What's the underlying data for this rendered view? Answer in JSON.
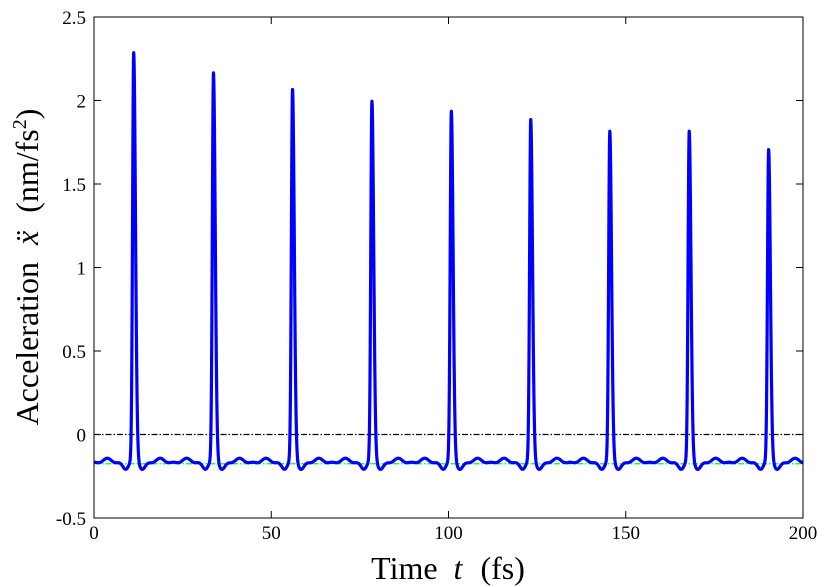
{
  "chart_data": {
    "type": "line",
    "title": "",
    "xlabel": {
      "main": "Time",
      "var": "t",
      "unit": "(fs)"
    },
    "ylabel": {
      "main": "Acceleration",
      "var": "ẍ",
      "unit_open": "(nm/fs",
      "unit_sup": "2",
      "unit_close": ")"
    },
    "xlim": [
      0,
      200
    ],
    "ylim": [
      -0.5,
      2.5
    ],
    "xticks": [
      0,
      50,
      100,
      150,
      200
    ],
    "xtick_labels": [
      "0",
      "50",
      "100",
      "150",
      "200"
    ],
    "yticks": [
      -0.5,
      0,
      0.5,
      1,
      1.5,
      2,
      2.5
    ],
    "ytick_labels": [
      "-0.5",
      "0",
      "0.5",
      "1",
      "1.5",
      "2",
      "2.5"
    ],
    "grid": false,
    "legend": "none",
    "series": [
      {
        "style": "solid",
        "color": "#0000ff",
        "baseline": -0.16,
        "peaks": [
          {
            "x": 11.2,
            "y": 2.27
          },
          {
            "x": 33.7,
            "y": 2.15
          },
          {
            "x": 56.0,
            "y": 2.05
          },
          {
            "x": 78.4,
            "y": 1.98
          },
          {
            "x": 100.8,
            "y": 1.92
          },
          {
            "x": 123.2,
            "y": 1.87
          },
          {
            "x": 145.5,
            "y": 1.8
          },
          {
            "x": 167.9,
            "y": 1.8
          },
          {
            "x": 190.3,
            "y": 1.69
          }
        ]
      },
      {
        "style": "dash-dot",
        "color": "#000000",
        "x": [
          0,
          200
        ],
        "y": [
          0,
          0
        ]
      },
      {
        "style": "dash-dot",
        "color": "#00ff00",
        "x": [
          0,
          200
        ],
        "y": [
          -0.175,
          -0.175
        ]
      }
    ]
  }
}
